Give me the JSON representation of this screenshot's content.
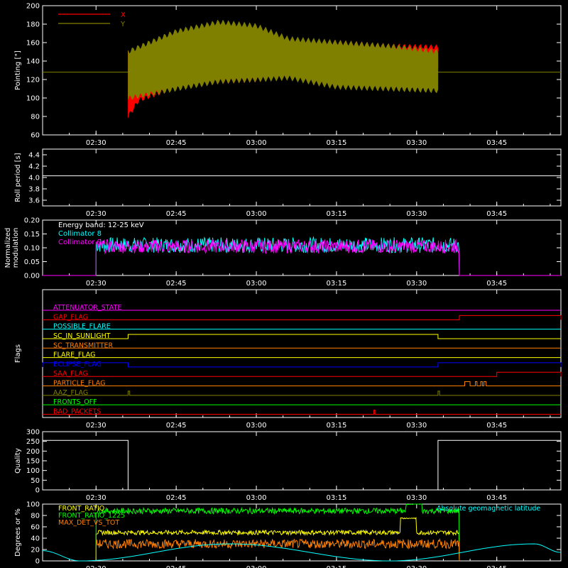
{
  "colors": {
    "background": "#000000",
    "axis": "#ffffff",
    "x_red": "#ff0000",
    "y_olive": "#808000",
    "cyan": "#00ffff",
    "magenta": "#ff00ff",
    "yellow": "#ffff00",
    "orange": "#ff8000",
    "green": "#00ff00",
    "blue": "#0000ff"
  },
  "time_ticks": [
    "02:30",
    "02:45",
    "03:00",
    "03:15",
    "03:30",
    "03:45"
  ],
  "chart_data": [
    {
      "id": "pointing",
      "type": "line",
      "ylabel": "Pointing [\"]",
      "ylim": [
        60,
        200
      ],
      "yticks": [
        60,
        80,
        100,
        120,
        140,
        160,
        180,
        200
      ],
      "xlim": [
        "02:20",
        "03:57"
      ],
      "legend": "top-left",
      "series": [
        {
          "name": "X",
          "color": "#ff0000",
          "start": "02:36",
          "end": "03:34",
          "envelope_times": [
            "02:36",
            "02:38",
            "02:45",
            "02:53",
            "03:00",
            "03:06",
            "03:15",
            "03:25",
            "03:34"
          ],
          "envelope_upper": [
            150,
            142,
            164,
            168,
            168,
            162,
            160,
            156,
            155
          ],
          "envelope_lower": [
            80,
            98,
            112,
            118,
            120,
            124,
            128,
            130,
            132
          ]
        },
        {
          "name": "Y",
          "color": "#808000",
          "start": "02:36",
          "end": "03:34",
          "envelope_times": [
            "02:36",
            "02:45",
            "02:53",
            "03:00",
            "03:06",
            "03:15",
            "03:25",
            "03:34"
          ],
          "envelope_upper": [
            150,
            172,
            182,
            178,
            164,
            160,
            156,
            150
          ],
          "envelope_lower": [
            100,
            110,
            118,
            120,
            122,
            112,
            110,
            108
          ],
          "baseline": 128
        }
      ]
    },
    {
      "id": "roll",
      "type": "line",
      "ylabel": "Roll period [s]",
      "ylim": [
        3.5,
        4.5
      ],
      "yticks": [
        "3.6",
        "3.8",
        "4.0",
        "4.2",
        "4.4"
      ],
      "series": [
        {
          "name": "",
          "color": "#ffffff",
          "value": 4.03,
          "start": "02:20",
          "end": "03:57"
        }
      ]
    },
    {
      "id": "modulation",
      "type": "line",
      "ylabel": [
        "Normalized",
        "modulation"
      ],
      "ylim": [
        0,
        0.2
      ],
      "yticks": [
        "0.00",
        "0.05",
        "0.10",
        "0.15",
        "0.20"
      ],
      "annotation": "Energy band: 12-25 keV",
      "series": [
        {
          "name": "Collimator 8",
          "color": "#00ffff",
          "start": "02:30",
          "end": "03:38",
          "mean": 0.11,
          "spread": 0.028
        },
        {
          "name": "Collimator 9",
          "color": "#ff00ff",
          "start": "02:30",
          "end": "03:38",
          "mean": 0.105,
          "spread": 0.025
        }
      ]
    },
    {
      "id": "flags",
      "type": "line",
      "ylabel": "Flags",
      "flags": [
        {
          "name": "ATTENUATOR_STATE",
          "color": "#ff00ff",
          "segments": []
        },
        {
          "name": "GAP_FLAG",
          "color": "#ff0000",
          "segments": [
            [
              "03:38",
              "03:57"
            ]
          ]
        },
        {
          "name": "POSSIBLE_FLARE",
          "color": "#00ffff",
          "segments": []
        },
        {
          "name": "SC_IN_SUNLIGHT",
          "color": "#ffff00",
          "segments": [
            [
              "02:36",
              "03:34"
            ]
          ]
        },
        {
          "name": "SC_TRANSMITTER",
          "color": "#ff8000",
          "segments": []
        },
        {
          "name": "FLARE_FLAG",
          "color": "#ffff00",
          "segments": []
        },
        {
          "name": "ECLIPSE_FLAG",
          "color": "#0000ff",
          "segments": [
            [
              "02:20",
              "02:36"
            ],
            [
              "03:34",
              "03:57"
            ]
          ]
        },
        {
          "name": "SAA_FLAG",
          "color": "#ff0000",
          "segments": [
            [
              "03:45",
              "03:57"
            ]
          ]
        },
        {
          "name": "PARTICLE_FLAG",
          "color": "#ff8000",
          "segments": [
            [
              "03:39",
              "03:40"
            ],
            [
              "03:41",
              "03:41.3"
            ],
            [
              "03:42",
              "03:42.3"
            ],
            [
              "03:42.6",
              "03:43"
            ]
          ]
        },
        {
          "name": "AAZ_FLAG",
          "color": "#808000",
          "segments": [
            [
              "02:36",
              "02:36.3"
            ],
            [
              "03:34",
              "03:34.3"
            ]
          ]
        },
        {
          "name": "FRONTS_OFF",
          "color": "#00ff00",
          "segments": []
        },
        {
          "name": "BAD_PACKETS",
          "color": "#ff0000",
          "segments": [
            [
              "03:22",
              "03:22.2"
            ]
          ]
        }
      ]
    },
    {
      "id": "quality",
      "type": "line",
      "ylabel": "Quality",
      "ylim": [
        0,
        300
      ],
      "yticks": [
        0,
        50,
        100,
        150,
        200,
        250,
        300
      ],
      "series": [
        {
          "name": "",
          "color": "#ffffff",
          "x": [
            "02:20",
            "02:36",
            "02:36",
            "03:34",
            "03:34",
            "03:57"
          ],
          "y": [
            255,
            255,
            0,
            0,
            255,
            255
          ]
        }
      ]
    },
    {
      "id": "ratios",
      "type": "line",
      "ylabel": "Degrees or %",
      "ylim": [
        0,
        100
      ],
      "yticks": [
        0,
        20,
        40,
        60,
        80,
        100
      ],
      "series": [
        {
          "name": "FRONT_RATIO",
          "color": "#ffff00",
          "start": "02:30",
          "end": "03:38",
          "mean": 50,
          "spread": 4,
          "bump": {
            "from": "03:27",
            "to": "03:30",
            "value": 75
          }
        },
        {
          "name": "FRONT_RATIO_1225",
          "color": "#00ff00",
          "start": "02:30",
          "end": "03:38",
          "mean": 88,
          "spread": 5,
          "bump": {
            "from": "03:28",
            "to": "03:31",
            "value": 100
          }
        },
        {
          "name": "MAX_DET_VS_TOT",
          "color": "#ff8000",
          "start": "02:30",
          "end": "03:38",
          "mean": 30,
          "spread": 8
        },
        {
          "name": "Absolute geomagnetic latitude",
          "color": "#00ffff",
          "start": "02:20",
          "end": "03:57",
          "x": [
            "02:20",
            "02:27",
            "02:55",
            "03:25",
            "03:52",
            "03:57"
          ],
          "y": [
            18,
            0,
            30,
            0,
            30,
            15
          ]
        }
      ]
    }
  ]
}
